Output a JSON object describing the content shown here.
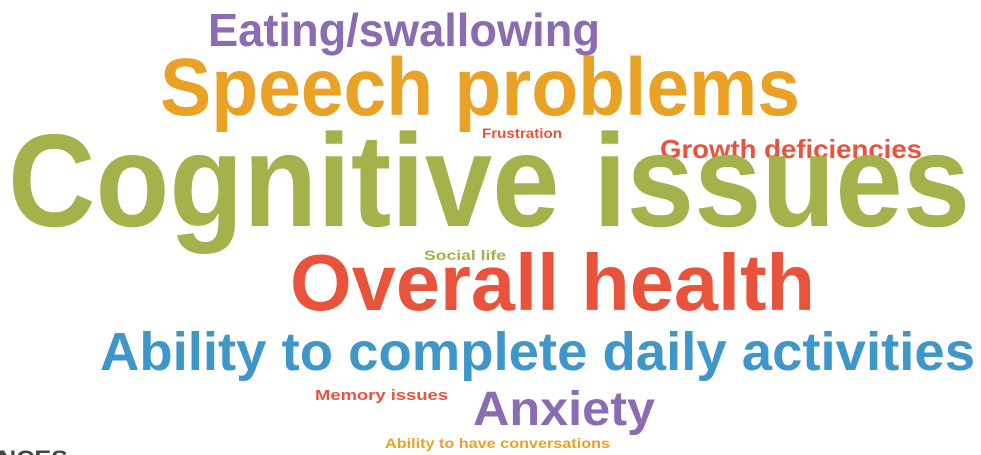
{
  "words": [
    {
      "text": "Eating/swallowing",
      "color": "#8b6bb1"
    },
    {
      "text": "Speech problems",
      "color": "#e9a126"
    },
    {
      "text": "Frustration",
      "color": "#e9533c"
    },
    {
      "text": "Growth deficiencies",
      "color": "#e9533c"
    },
    {
      "text": "Cognitive issues",
      "color": "#a5b14b"
    },
    {
      "text": "Social life",
      "color": "#a5b14b"
    },
    {
      "text": "Overall health",
      "color": "#e9533c"
    },
    {
      "text": "Ability to complete daily activities",
      "color": "#3f96c9"
    },
    {
      "text": "Memory issues",
      "color": "#e9533c"
    },
    {
      "text": "Anxiety",
      "color": "#8b6bb1"
    },
    {
      "text": "Ability to have conversations",
      "color": "#e9a126"
    },
    {
      "text": "NCES",
      "color": "#444444"
    }
  ]
}
